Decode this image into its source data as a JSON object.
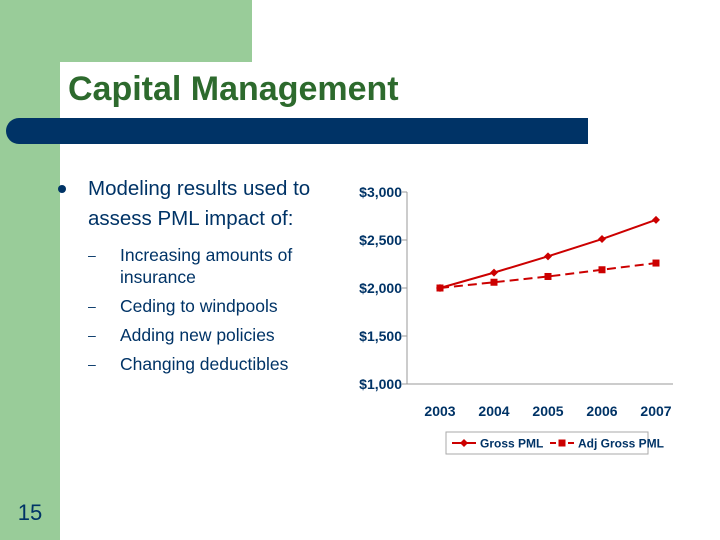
{
  "slide": {
    "title": "Capital Management",
    "page_number": "15",
    "bullets": [
      {
        "text": "Modeling results used to assess PML impact of:",
        "sub_items": [
          "Increasing amounts of insurance",
          "Ceding to windpools",
          "Adding new policies",
          "Changing deductibles"
        ]
      }
    ]
  },
  "colors": {
    "green": "#99cc99",
    "title_green": "#2d6a2d",
    "navy": "#003366",
    "series_red": "#cc0000"
  },
  "chart_data": {
    "type": "line",
    "categories": [
      "2003",
      "2004",
      "2005",
      "2006",
      "2007"
    ],
    "series": [
      {
        "name": "Gross PML",
        "values": [
          2000,
          2160,
          2330,
          2510,
          2710
        ],
        "style": "solid",
        "marker": "diamond"
      },
      {
        "name": "Adj Gross PML",
        "values": [
          2000,
          2060,
          2120,
          2190,
          2260
        ],
        "style": "dashed",
        "marker": "square"
      }
    ],
    "y_ticks": [
      "$1,000",
      "$1,500",
      "$2,000",
      "$2,500",
      "$3,000"
    ],
    "ylim": [
      1000,
      3000
    ],
    "grid": false,
    "legend": "bottom"
  }
}
